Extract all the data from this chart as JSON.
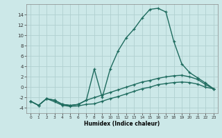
{
  "xlabel": "Humidex (Indice chaleur)",
  "background_color": "#cce8e8",
  "grid_color": "#b0d0d0",
  "line_color": "#1e6b5e",
  "xlim": [
    -0.5,
    23.5
  ],
  "ylim": [
    -5,
    16
  ],
  "yticks": [
    -4,
    -2,
    0,
    2,
    4,
    6,
    8,
    10,
    12,
    14
  ],
  "xticks": [
    0,
    1,
    2,
    3,
    4,
    5,
    6,
    7,
    8,
    9,
    10,
    11,
    12,
    13,
    14,
    15,
    16,
    17,
    18,
    19,
    20,
    21,
    22,
    23
  ],
  "line1_x": [
    0,
    1,
    2,
    3,
    4,
    5,
    6,
    7,
    8,
    9,
    10,
    11,
    12,
    13,
    14,
    15,
    16,
    17,
    18,
    19,
    20,
    21,
    22,
    23
  ],
  "line1_y": [
    -2.7,
    -3.5,
    -2.2,
    -2.8,
    -3.5,
    -3.7,
    -3.6,
    -3.3,
    -3.2,
    -2.7,
    -2.2,
    -1.8,
    -1.3,
    -0.8,
    -0.3,
    0.0,
    0.5,
    0.7,
    0.9,
    1.0,
    0.9,
    0.6,
    0.0,
    -0.3
  ],
  "line2_x": [
    0,
    1,
    2,
    3,
    4,
    5,
    6,
    7,
    8,
    9,
    10,
    11,
    12,
    13,
    14,
    15,
    16,
    17,
    18,
    19,
    20,
    21,
    22,
    23
  ],
  "line2_y": [
    -2.7,
    -3.5,
    -2.2,
    -2.5,
    -3.3,
    -3.5,
    -3.3,
    -2.5,
    3.5,
    -2.0,
    3.5,
    7.0,
    9.5,
    11.2,
    13.3,
    15.0,
    15.2,
    14.5,
    8.8,
    4.5,
    2.8,
    1.8,
    0.8,
    -0.3
  ],
  "line3_x": [
    0,
    1,
    2,
    3,
    4,
    5,
    6,
    7,
    8,
    9,
    10,
    11,
    12,
    13,
    14,
    15,
    16,
    17,
    18,
    19,
    20,
    21,
    22,
    23
  ],
  "line3_y": [
    -2.7,
    -3.5,
    -2.2,
    -2.5,
    -3.3,
    -3.5,
    -3.3,
    -2.5,
    -2.0,
    -1.5,
    -1.0,
    -0.5,
    0.0,
    0.5,
    1.0,
    1.3,
    1.7,
    2.0,
    2.2,
    2.3,
    2.0,
    1.5,
    0.5,
    -0.3
  ]
}
